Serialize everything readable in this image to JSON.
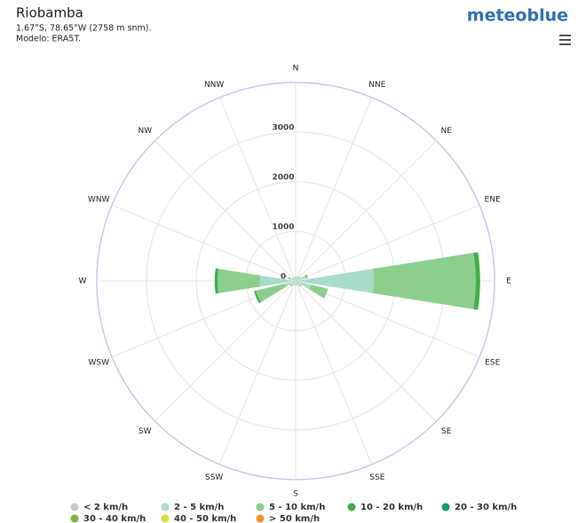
{
  "header": {
    "title": "Riobamba",
    "location": "1.67°S, 78.65°W (2758 m snm).",
    "model": "Modelo: ERA5T.",
    "logo": "meteoblue"
  },
  "chart_data": {
    "type": "windrose",
    "categories": [
      "N",
      "NNE",
      "NE",
      "ENE",
      "E",
      "ESE",
      "SE",
      "SSE",
      "S",
      "SSW",
      "SW",
      "WSW",
      "W",
      "WNW",
      "NW",
      "NNW"
    ],
    "rlim": [
      0,
      4000
    ],
    "rticks": [
      0,
      1000,
      2000,
      3000
    ],
    "grid": true,
    "series": [
      {
        "name": "< 2 km/h",
        "color": "#c9c9c9",
        "values": [
          20,
          20,
          20,
          20,
          20,
          20,
          20,
          20,
          20,
          20,
          20,
          20,
          20,
          20,
          20,
          20
        ]
      },
      {
        "name": "2 - 5 km/h",
        "color": "#a9dcc9",
        "values": [
          60,
          60,
          80,
          180,
          1550,
          300,
          100,
          60,
          60,
          60,
          80,
          200,
          700,
          100,
          60,
          50
        ]
      },
      {
        "name": "5 - 10 km/h",
        "color": "#8ccf8c",
        "values": [
          10,
          10,
          20,
          60,
          2050,
          350,
          30,
          10,
          10,
          10,
          40,
          600,
          850,
          40,
          10,
          10
        ]
      },
      {
        "name": "10 - 20 km/h",
        "color": "#3eae48",
        "values": [
          0,
          0,
          0,
          0,
          90,
          0,
          0,
          0,
          0,
          0,
          0,
          40,
          60,
          0,
          0,
          0
        ]
      },
      {
        "name": "20 - 30 km/h",
        "color": "#159a68",
        "values": [
          0,
          0,
          0,
          0,
          0,
          0,
          0,
          0,
          0,
          0,
          0,
          0,
          0,
          0,
          0,
          0
        ]
      },
      {
        "name": "30 - 40 km/h",
        "color": "#7bb43a",
        "values": [
          0,
          0,
          0,
          0,
          0,
          0,
          0,
          0,
          0,
          0,
          0,
          0,
          0,
          0,
          0,
          0
        ]
      },
      {
        "name": "40 - 50 km/h",
        "color": "#d6e03c",
        "values": [
          0,
          0,
          0,
          0,
          0,
          0,
          0,
          0,
          0,
          0,
          0,
          0,
          0,
          0,
          0,
          0
        ]
      },
      {
        "name": "> 50 km/h",
        "color": "#f0922b",
        "values": [
          0,
          0,
          0,
          0,
          0,
          0,
          0,
          0,
          0,
          0,
          0,
          0,
          0,
          0,
          0,
          0
        ]
      }
    ]
  }
}
